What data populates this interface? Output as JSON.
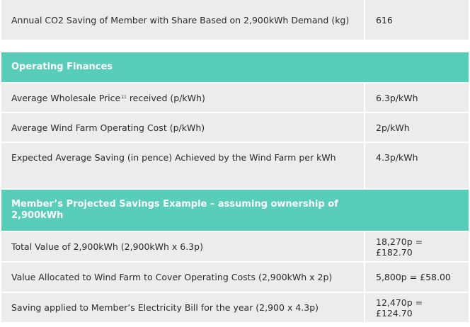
{
  "rows_top": [
    {
      "label": "Annual CO2 Saving of Member with Share Based on 2,900kWh Demand (kg)",
      "value": "616"
    }
  ],
  "section_operating": {
    "title": "Operating Finances",
    "rows": [
      {
        "label_before": "Average Wholesale Price",
        "footnote": "11",
        "label_after": " received (p/kWh)",
        "value": "6.3p/kWh"
      },
      {
        "label": "Average Wind Farm Operating Cost (p/kWh)",
        "value": "2p/kWh"
      },
      {
        "label": "Expected Average Saving (in pence) Achieved by the Wind Farm per kWh",
        "value": "4.3p/kWh"
      }
    ]
  },
  "section_savings": {
    "title": "Member’s Projected Savings Example – assuming ownership of 2,900kWh",
    "rows": [
      {
        "label": "Total Value of 2,900kWh (2,900kWh x 6.3p)",
        "value": "18,270p = £182.70"
      },
      {
        "label": "Value Allocated to Wind Farm to Cover Operating Costs (2,900kWh x 2p)",
        "value": "5,800p = £58.00"
      },
      {
        "label": "Saving applied to Member’s Electricity Bill for the year (2,900 x 4.3p)",
        "value": "12,470p = £124.70"
      }
    ]
  },
  "colors": {
    "header_bg": "#58cdb9",
    "row_bg": "#ececec",
    "header_text": "#ffffff"
  }
}
